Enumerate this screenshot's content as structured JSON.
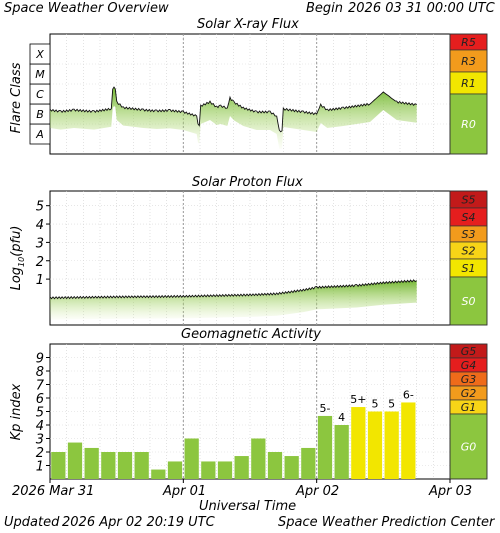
{
  "header": {
    "title": "Space Weather Overview",
    "begin_label": "Begin",
    "begin_value": "2026 03 31 00:00 UTC"
  },
  "footer": {
    "updated_label": "Updated",
    "updated_value": "2026 Apr 02 20:19 UTC",
    "center": "Space Weather Prediction Center"
  },
  "x_axis": {
    "title": "Universal Time",
    "ticks": [
      "2026 Mar 31",
      "Apr 01",
      "Apr 02",
      "Apr 03"
    ]
  },
  "colors": {
    "green": "#8cc63f",
    "yellow": "#f2e600",
    "yellow_scale": "#f7d417",
    "orange": "#f29b1c",
    "dark_orange": "#ef6b1a",
    "red": "#e51e1e",
    "dark_red": "#c21a1a"
  },
  "chart_data": [
    {
      "type": "line",
      "title": "Solar X-ray Flux",
      "ylabel": "Flare Class",
      "y_scale": "log",
      "categories": [
        "A",
        "B",
        "C",
        "M",
        "X"
      ],
      "x": [
        0,
        0.08,
        0.18,
        0.33,
        0.46,
        0.47,
        0.48,
        0.49,
        0.5,
        0.55,
        0.7,
        0.8,
        0.9,
        1.0,
        1.1,
        1.11,
        1.12,
        1.13,
        1.2,
        1.25,
        1.28,
        1.33,
        1.35,
        1.38,
        1.45,
        1.55,
        1.65,
        1.7,
        1.72,
        1.74,
        1.75,
        1.8,
        1.9,
        2.0,
        2.03,
        2.08,
        2.2,
        2.4,
        2.5,
        2.6,
        2.75
      ],
      "series": [
        {
          "values": [
            1.7,
            1.62,
            1.7,
            1.62,
            1.76,
            2.7,
            2.8,
            2.75,
            2.1,
            1.82,
            1.7,
            1.65,
            1.68,
            1.6,
            1.4,
            0.96,
            0.92,
            1.9,
            2.1,
            1.85,
            1.9,
            1.8,
            2.3,
            2.08,
            1.8,
            1.6,
            1.6,
            1.4,
            0.65,
            0.66,
            1.75,
            1.7,
            1.6,
            1.5,
            1.95,
            1.7,
            1.8,
            2.0,
            2.6,
            2.1,
            1.96
          ]
        }
      ],
      "scale": {
        "labels": [
          "R5",
          "R3",
          "R1",
          "R0"
        ],
        "colors": [
          "#e51e1e",
          "#f29b1c",
          "#f2e600",
          "#8cc63f"
        ]
      }
    },
    {
      "type": "line",
      "title": "Solar Proton Flux",
      "ylabel": "Log10(pfu)",
      "ylim": [
        -1.5,
        5.8
      ],
      "yticks": [
        1,
        2,
        3,
        4,
        5
      ],
      "x": [
        0,
        0.5,
        1.0,
        1.5,
        1.7,
        1.9,
        2.0,
        2.3,
        2.5,
        2.75
      ],
      "series": [
        {
          "values": [
            -0.02,
            0.03,
            0.06,
            0.14,
            0.2,
            0.4,
            0.55,
            0.65,
            0.8,
            0.92
          ]
        }
      ],
      "scale": {
        "labels": [
          "S5",
          "S4",
          "S3",
          "S2",
          "S1",
          "S0"
        ],
        "colors": [
          "#c21a1a",
          "#e51e1e",
          "#f29b1c",
          "#f7d417",
          "#f2e600",
          "#8cc63f"
        ]
      }
    },
    {
      "type": "bar",
      "title": "Geomagnetic Activity",
      "ylabel": "Kp index",
      "ylim": [
        0,
        10
      ],
      "yticks": [
        1,
        2,
        3,
        4,
        5,
        6,
        7,
        8,
        9
      ],
      "values": [
        2.0,
        2.7,
        2.3,
        2.0,
        2.0,
        2.0,
        0.7,
        1.3,
        3.0,
        1.3,
        1.3,
        1.7,
        3.0,
        2.0,
        1.7,
        2.3,
        4.67,
        4.0,
        5.33,
        5.0,
        5.0,
        5.67
      ],
      "labels": [
        "",
        "",
        "",
        "",
        "",
        "",
        "",
        "",
        "",
        "",
        "",
        "",
        "",
        "",
        "",
        "",
        "5-",
        "4",
        "5+",
        "5",
        "5",
        "6-"
      ],
      "bar_colors": [
        "g",
        "g",
        "g",
        "g",
        "g",
        "g",
        "g",
        "g",
        "g",
        "g",
        "g",
        "g",
        "g",
        "g",
        "g",
        "g",
        "g",
        "g",
        "y",
        "y",
        "y",
        "y"
      ],
      "scale": {
        "labels": [
          "G5",
          "G4",
          "G3",
          "G2",
          "G1",
          "G0"
        ],
        "colors": [
          "#c21a1a",
          "#e51e1e",
          "#ef6b1a",
          "#f29b1c",
          "#f7d417",
          "#8cc63f"
        ]
      }
    }
  ]
}
